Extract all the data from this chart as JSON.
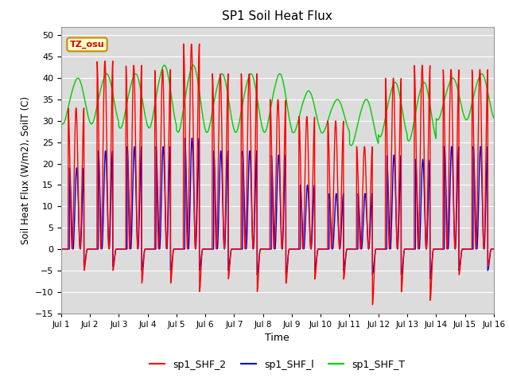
{
  "title": "SP1 Soil Heat Flux",
  "xlabel": "Time",
  "ylabel": "Soil Heat Flux (W/m2), SoilT (C)",
  "ylim": [
    -15,
    52
  ],
  "yticks": [
    -15,
    -10,
    -5,
    0,
    5,
    10,
    15,
    20,
    25,
    30,
    35,
    40,
    45,
    50
  ],
  "xtick_labels": [
    "Jul 1",
    "Jul 2",
    "Jul 3",
    "Jul 4",
    "Jul 5",
    "Jul 6",
    "Jul 7",
    "Jul 8",
    "Jul 9",
    "Jul 10",
    "Jul 11",
    "Jul 12",
    "Jul 13",
    "Jul 14",
    "Jul 15",
    "Jul 16"
  ],
  "color_shf2": "#ff0000",
  "color_shf1": "#0000dd",
  "color_shft": "#00cc00",
  "bg_color": "#dcdcdc",
  "legend_labels": [
    "sp1_SHF_2",
    "sp1_SHF_l",
    "sp1_SHF_T"
  ],
  "tz_label": "TZ_osu",
  "tz_box_color": "#ffffcc",
  "tz_text_color": "#cc0000",
  "n_days": 15
}
